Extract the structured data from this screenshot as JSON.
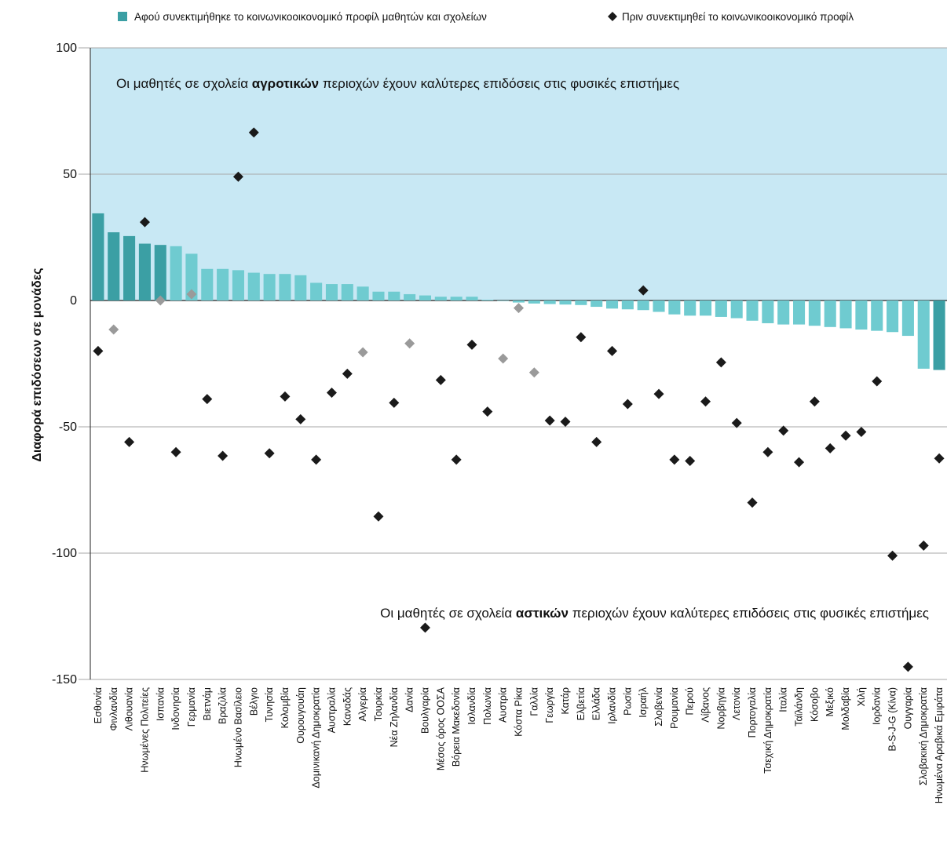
{
  "chart_data": {
    "type": "bar",
    "ylabel": "Διαφορά επιδόσεων σε μονάδες",
    "ylim": [
      -150,
      100
    ],
    "yticks": [
      100,
      50,
      0,
      -50,
      -100,
      -150
    ],
    "grid": true,
    "legend_position": "top",
    "annotations": {
      "top": {
        "pre": "Οι μαθητές σε σχολεία ",
        "bold": "αγροτικών",
        "post": " περιοχών έχουν καλύτερες επιδόσεις στις φυσικές επιστήμες"
      },
      "bottom": {
        "pre": "Οι μαθητές σε σχολεία ",
        "bold": "αστικών",
        "post": " περιοχών έχουν καλύτερες επιδόσεις στις φυσικές επιστήμες"
      }
    },
    "colors": {
      "band": "#c8e8f4",
      "bar_significant": "#3b9fa4",
      "bar_not_significant": "#6fcbd0",
      "diamond_significant": "#1a1a1a",
      "diamond_not_significant": "#9a9a9a",
      "grid": "#a7a7a7"
    },
    "series": [
      {
        "name": "Αφού συνεκτιμήθηκε το κοινωνικοοικονομικό προφίλ μαθητών και σχολείων",
        "marker": "bar"
      },
      {
        "name": "Πριν συνεκτιμηθεί το κοινωνικοοικονομικό προφίλ",
        "marker": "diamond"
      }
    ],
    "categories": [
      "Εσθονία",
      "Φινλανδία",
      "Λιθουανία",
      "Ηνωμένες Πολιτείες",
      "Ισπανία",
      "Ινδονησία",
      "Γερμανία",
      "Βιετνάμ",
      "Βραζιλία",
      "Ηνωμένο Βασίλειο",
      "Βέλγιο",
      "Τυνησία",
      "Κολομβία",
      "Ουρουγουάη",
      "Δομινικανή Δημοκρατία",
      "Αυστραλία",
      "Καναδάς",
      "Αλγερία",
      "Τουρκία",
      "Νέα Ζηλανδία",
      "Δανία",
      "Βουλγαρία",
      "Μέσος όρος ΟΟΣΑ",
      "Βόρεια Μακεδονία",
      "Ισλανδία",
      "Πολωνία",
      "Αυστρία",
      "Κόστα Ρίκα",
      "Γαλλία",
      "Γεωργία",
      "Κατάρ",
      "Ελβετία",
      "Ελλάδα",
      "Ιρλανδία",
      "Ρωσία",
      "Ισραήλ",
      "Σλοβενία",
      "Ρουμανία",
      "Περού",
      "Λίβανος",
      "Νορβηγία",
      "Λετονία",
      "Πορτογαλία",
      "Τσεχική Δημοκρατία",
      "Ιταλία",
      "Ταϊλάνδη",
      "Κόσοβο",
      "Μεξικό",
      "Μολδαβία",
      "Χιλή",
      "Ιορδανία",
      "B-S-J-G (Κίνα)",
      "Ουγγαρία",
      "Σλοβακική Δημοκρατία",
      "Ηνωμένα Αραβικά Εμιράτα"
    ],
    "after": [
      34.5,
      27,
      25.5,
      22.5,
      22,
      21.5,
      18.5,
      12.5,
      12.5,
      12,
      11,
      10.5,
      10.5,
      10,
      7,
      6.5,
      6.5,
      5.5,
      3.5,
      3.5,
      2.5,
      2,
      1.5,
      1.5,
      1.5,
      0.3,
      0,
      -0.8,
      -1.2,
      -1.4,
      -1.6,
      -1.8,
      -2.5,
      -3.2,
      -3.5,
      -3.8,
      -4.5,
      -5.5,
      -6,
      -6,
      -6.5,
      -7,
      -8,
      -9,
      -9.5,
      -9.5,
      -10,
      -10.5,
      -11,
      -11.5,
      -12,
      -12.5,
      -14,
      -27,
      -27.5
    ],
    "after_significant": [
      true,
      true,
      true,
      true,
      true,
      false,
      false,
      false,
      false,
      false,
      false,
      false,
      false,
      false,
      false,
      false,
      false,
      false,
      false,
      false,
      false,
      false,
      false,
      false,
      false,
      false,
      false,
      false,
      false,
      false,
      false,
      false,
      false,
      false,
      false,
      false,
      false,
      false,
      false,
      false,
      false,
      false,
      false,
      false,
      false,
      false,
      false,
      false,
      false,
      false,
      false,
      false,
      false,
      false,
      true
    ],
    "before": [
      -20,
      -11.5,
      -56,
      31,
      0,
      -60,
      2.5,
      -39,
      -61.5,
      49,
      66.5,
      -60.5,
      -38,
      -47,
      -63,
      -36.5,
      -29,
      -20.5,
      -85.5,
      -40.5,
      -17,
      -129.5,
      -31.5,
      -63,
      -17.5,
      -44,
      -23,
      -3,
      -28.5,
      -47.5,
      -48,
      -14.5,
      -56,
      -20,
      -41,
      4,
      -37,
      -63,
      -63.5,
      -40,
      -24.5,
      -48.5,
      -80,
      -60,
      -51.5,
      -64,
      -40,
      -58.5,
      -53.5,
      -52,
      -32,
      -101,
      -145,
      -97,
      -62.5
    ],
    "before_significant": [
      true,
      false,
      true,
      true,
      false,
      true,
      false,
      true,
      true,
      true,
      true,
      true,
      true,
      true,
      true,
      true,
      true,
      false,
      true,
      true,
      false,
      true,
      true,
      true,
      true,
      true,
      false,
      false,
      false,
      true,
      true,
      true,
      true,
      true,
      true,
      true,
      true,
      true,
      true,
      true,
      true,
      true,
      true,
      true,
      true,
      true,
      true,
      true,
      true,
      true,
      true,
      true,
      true,
      true,
      true
    ]
  }
}
